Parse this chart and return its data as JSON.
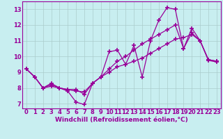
{
  "title": "",
  "xlabel": "Windchill (Refroidissement éolien,°C)",
  "ylabel": "",
  "bg_color": "#c8eef0",
  "line_color": "#990099",
  "marker": "+",
  "markersize": 4,
  "markeredgewidth": 1.2,
  "linewidth": 0.9,
  "xlim": [
    -0.5,
    23.5
  ],
  "ylim": [
    6.7,
    13.5
  ],
  "xticks": [
    0,
    1,
    2,
    3,
    4,
    5,
    6,
    7,
    8,
    9,
    10,
    11,
    12,
    13,
    14,
    15,
    16,
    17,
    18,
    19,
    20,
    21,
    22,
    23
  ],
  "yticks": [
    7,
    8,
    9,
    10,
    11,
    12,
    13
  ],
  "grid_color": "#aacccc",
  "series1": {
    "x": [
      0,
      1,
      2,
      3,
      4,
      5,
      6,
      7,
      8,
      9,
      10,
      11,
      12,
      13,
      14,
      15,
      16,
      17,
      18,
      19,
      20,
      21,
      22,
      23
    ],
    "y": [
      9.2,
      8.7,
      8.0,
      8.3,
      8.0,
      7.8,
      7.1,
      6.95,
      8.3,
      8.7,
      10.3,
      10.4,
      9.5,
      10.7,
      8.7,
      11.0,
      12.3,
      13.1,
      13.0,
      10.5,
      11.8,
      11.0,
      9.8,
      9.7
    ]
  },
  "series2": {
    "x": [
      0,
      1,
      2,
      3,
      4,
      5,
      6,
      7,
      8,
      9,
      10,
      11,
      12,
      13,
      14,
      15,
      16,
      17,
      18,
      19,
      20,
      21,
      22,
      23
    ],
    "y": [
      9.2,
      8.7,
      8.0,
      8.1,
      8.0,
      7.9,
      7.8,
      7.75,
      8.3,
      8.7,
      9.0,
      9.35,
      9.5,
      9.7,
      9.9,
      10.2,
      10.5,
      10.8,
      11.1,
      11.2,
      11.4,
      11.0,
      9.75,
      9.65
    ]
  },
  "series3": {
    "x": [
      0,
      1,
      2,
      3,
      4,
      5,
      6,
      7,
      8,
      9,
      10,
      11,
      12,
      13,
      14,
      15,
      16,
      17,
      18,
      19,
      20,
      21,
      22,
      23
    ],
    "y": [
      9.2,
      8.7,
      8.0,
      8.2,
      8.0,
      7.9,
      7.9,
      7.6,
      8.3,
      8.7,
      9.2,
      9.7,
      10.0,
      10.4,
      10.8,
      11.1,
      11.4,
      11.7,
      12.0,
      10.5,
      11.5,
      11.0,
      9.8,
      9.7
    ]
  },
  "xlabel_fontsize": 6.5,
  "tick_fontsize": 6.0
}
